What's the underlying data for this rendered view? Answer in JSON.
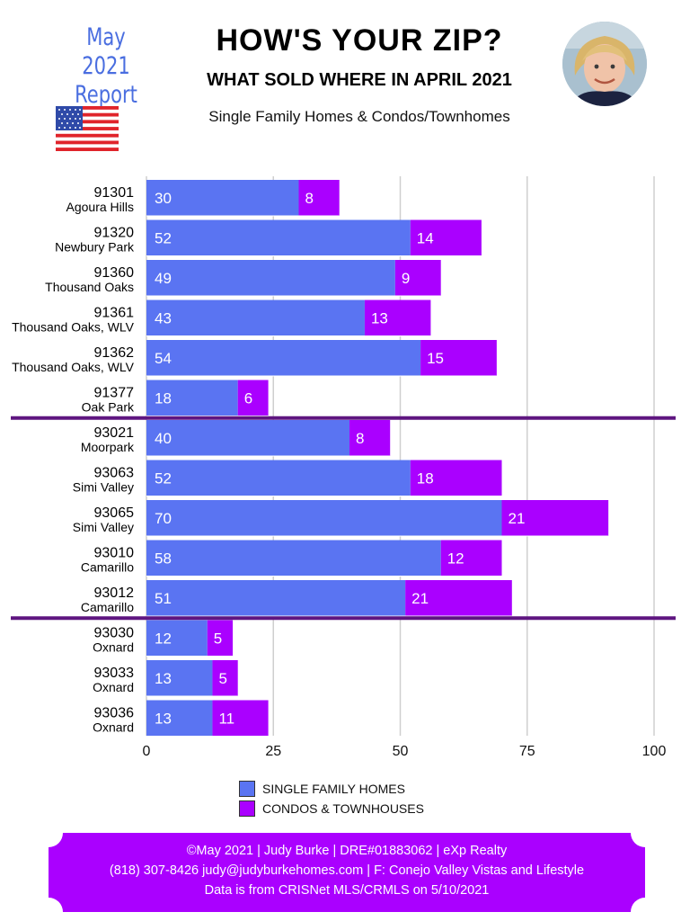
{
  "header": {
    "report_line1": "May 2021",
    "report_line2": "Report",
    "title": "HOW'S YOUR ZIP?",
    "subtitle": "WHAT SOLD WHERE IN APRIL 2021",
    "tagline": "Single Family Homes & Condos/Townhomes"
  },
  "colors": {
    "single_family": "#5a74f2",
    "condos": "#aa00ff",
    "divider": "#5e1580",
    "footer_bg": "#aa00ff"
  },
  "legend": {
    "single_family_label": "SINGLE FAMILY HOMES",
    "condos_label": "CONDOS & TOWNHOUSES"
  },
  "footer": {
    "line1": "©May 2021  |  Judy Burke  |  DRE#01883062  |  eXp Realty",
    "line2": "(818) 307-8426  judy@judyburkehomes.com | F: Conejo Valley Vistas and Lifestyle",
    "line3": "Data is from CRISNet MLS/CRMLS on 5/10/2021"
  },
  "chart_data": {
    "type": "bar",
    "orientation": "horizontal",
    "stacked": true,
    "categories": [
      {
        "zip": "91301",
        "area": "Agoura Hills"
      },
      {
        "zip": "91320",
        "area": "Newbury Park"
      },
      {
        "zip": "91360",
        "area": "Thousand Oaks"
      },
      {
        "zip": "91361",
        "area": "Thousand Oaks, WLV"
      },
      {
        "zip": "91362",
        "area": "Thousand Oaks, WLV"
      },
      {
        "zip": "91377",
        "area": "Oak Park"
      },
      {
        "zip": "93021",
        "area": "Moorpark"
      },
      {
        "zip": "93063",
        "area": "Simi Valley"
      },
      {
        "zip": "93065",
        "area": "Simi Valley"
      },
      {
        "zip": "93010",
        "area": "Camarillo"
      },
      {
        "zip": "93012",
        "area": "Camarillo"
      },
      {
        "zip": "93030",
        "area": "Oxnard"
      },
      {
        "zip": "93033",
        "area": "Oxnard"
      },
      {
        "zip": "93036",
        "area": "Oxnard"
      }
    ],
    "series": [
      {
        "name": "SINGLE FAMILY HOMES",
        "values": [
          30,
          52,
          49,
          43,
          54,
          18,
          40,
          52,
          70,
          58,
          51,
          12,
          13,
          13
        ]
      },
      {
        "name": "CONDOS & TOWNHOUSES",
        "values": [
          8,
          14,
          9,
          13,
          15,
          6,
          8,
          18,
          21,
          12,
          21,
          5,
          5,
          11
        ]
      }
    ],
    "group_dividers_after_index": [
      5,
      10
    ],
    "xticks": [
      0,
      25,
      50,
      75,
      100
    ],
    "xlim": [
      0,
      100
    ],
    "grid": "vertical",
    "legend_position": "bottom"
  }
}
